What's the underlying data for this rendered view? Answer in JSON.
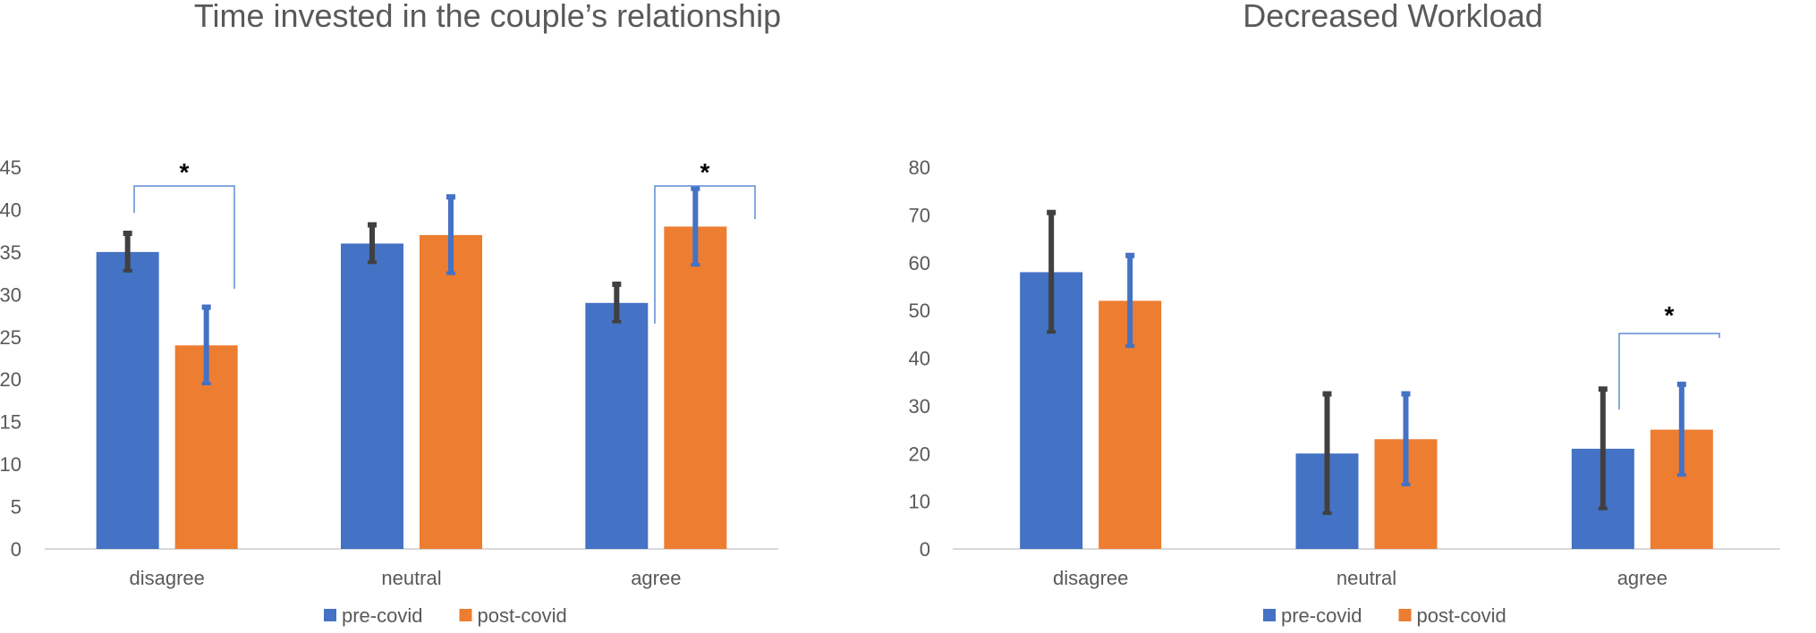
{
  "chart_data": [
    {
      "type": "bar",
      "title": "Time invested in the couple’s relationship",
      "categories": [
        "disagree",
        "neutral",
        "agree"
      ],
      "series": [
        {
          "name": "pre-covid",
          "color": "#4472C4",
          "error_color": "#404040",
          "values": [
            35,
            36,
            29
          ],
          "error": [
            2.2,
            2.2,
            2.2
          ]
        },
        {
          "name": "post-covid",
          "color": "#ED7D31",
          "error_color": "#4472C4",
          "values": [
            24,
            37,
            38
          ],
          "error": [
            4.5,
            4.5,
            4.5
          ]
        }
      ],
      "ylim": [
        0,
        45
      ],
      "yticks": [
        "0",
        "5",
        "10",
        "15",
        "20",
        "25",
        "30",
        "35",
        "40",
        "45"
      ],
      "gridlines": false,
      "legend_position": "bottom",
      "significance": [
        {
          "category_index": 0,
          "label": "*"
        },
        {
          "category_index": 2,
          "label": "*"
        }
      ]
    },
    {
      "type": "bar",
      "title": "Decreased Workload",
      "categories": [
        "disagree",
        "neutral",
        "agree"
      ],
      "series": [
        {
          "name": "pre-covid",
          "color": "#4472C4",
          "error_color": "#404040",
          "values": [
            58,
            20,
            21
          ],
          "error": [
            12.5,
            12.5,
            12.5
          ]
        },
        {
          "name": "post-covid",
          "color": "#ED7D31",
          "error_color": "#4472C4",
          "values": [
            52,
            23,
            25
          ],
          "error": [
            9.5,
            9.5,
            9.5
          ]
        }
      ],
      "ylim": [
        0,
        80
      ],
      "yticks": [
        "0",
        "10",
        "20",
        "30",
        "40",
        "50",
        "60",
        "70",
        "80"
      ],
      "gridlines": false,
      "legend_position": "bottom",
      "significance": [
        {
          "category_index": 2,
          "label": "*"
        }
      ]
    }
  ]
}
